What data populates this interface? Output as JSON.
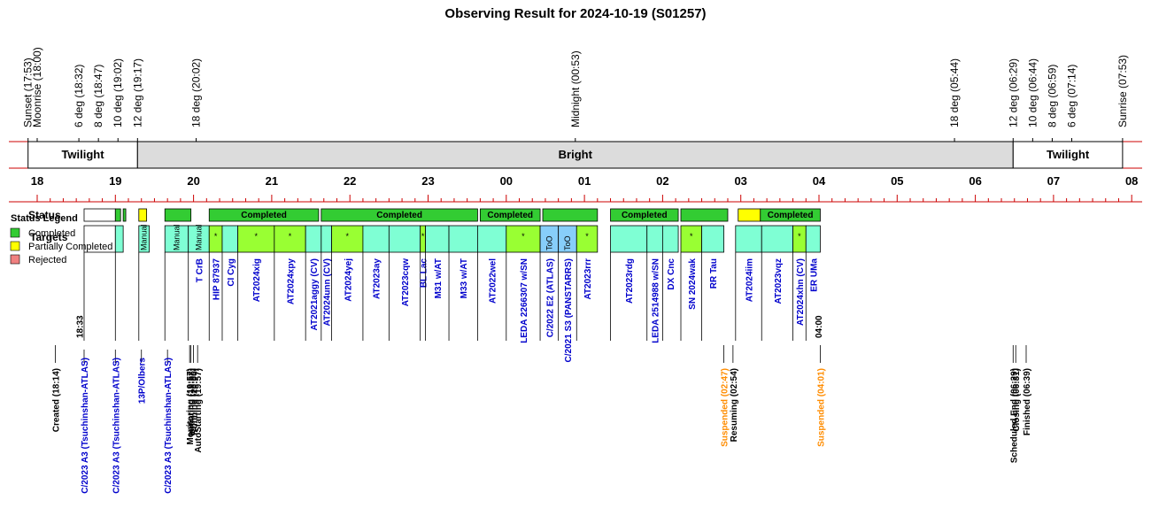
{
  "chart_data": {
    "type": "timeline",
    "title": "Observing Result for 2024-10-19 (S01257)",
    "hour_ticks": [
      "18",
      "19",
      "20",
      "21",
      "22",
      "23",
      "00",
      "01",
      "02",
      "03",
      "04",
      "05",
      "06",
      "07",
      "08"
    ],
    "events": [
      {
        "label": "Sunset (17:53)",
        "time": "17:53",
        "color": "#000000"
      },
      {
        "label": "Moonrise (18:00)",
        "time": "18:00",
        "color": "#0000cc"
      },
      {
        "label": "6 deg (18:32)",
        "time": "18:32",
        "color": "#000000"
      },
      {
        "label": "8 deg (18:47)",
        "time": "18:47",
        "color": "#000000"
      },
      {
        "label": "10 deg (19:02)",
        "time": "19:02",
        "color": "#000000"
      },
      {
        "label": "12 deg (19:17)",
        "time": "19:17",
        "color": "#000000"
      },
      {
        "label": "18 deg (20:02)",
        "time": "20:02",
        "color": "#000000"
      },
      {
        "label": "Midnight (00:53)",
        "time": "00:53",
        "color": "#000000"
      },
      {
        "label": "18 deg (05:44)",
        "time": "05:44",
        "color": "#000000"
      },
      {
        "label": "12 deg (06:29)",
        "time": "06:29",
        "color": "#000000"
      },
      {
        "label": "10 deg (06:44)",
        "time": "06:44",
        "color": "#000000"
      },
      {
        "label": "8 deg (06:59)",
        "time": "06:59",
        "color": "#000000"
      },
      {
        "label": "6 deg (07:14)",
        "time": "07:14",
        "color": "#000000"
      },
      {
        "label": "Sunrise (07:53)",
        "time": "07:53",
        "color": "#000000"
      }
    ],
    "phases": [
      {
        "label": "Twilight",
        "start": "17:53",
        "end": "19:17",
        "fill": "#ffffff"
      },
      {
        "label": "Bright",
        "start": "19:17",
        "end": "06:29",
        "fill": "#dcdcdc"
      },
      {
        "label": "Twilight",
        "start": "06:29",
        "end": "07:53",
        "fill": "#ffffff"
      }
    ],
    "status_label": "Status",
    "targets_label": "Targets",
    "legend": {
      "title": "Status Legend",
      "items": [
        {
          "label": "Completed",
          "color": "#33cc33"
        },
        {
          "label": "Partially Completed",
          "color": "#ffff00"
        },
        {
          "label": "Rejected",
          "color": "#f08080"
        }
      ]
    },
    "status": [
      {
        "start": "18:36",
        "end": "19:00",
        "status": "none"
      },
      {
        "start": "19:00",
        "end": "19:04",
        "status": "completed"
      },
      {
        "start": "19:06",
        "end": "19:08",
        "status": "completed"
      },
      {
        "start": "19:18",
        "end": "19:24",
        "status": "partial"
      },
      {
        "start": "19:38",
        "end": "19:58",
        "status": "completed"
      },
      {
        "start": "20:12",
        "end": "21:36",
        "status": "completed",
        "label": "Completed"
      },
      {
        "start": "21:38",
        "end": "23:38",
        "status": "completed",
        "label": "Completed"
      },
      {
        "start": "23:40",
        "end": "00:26",
        "status": "completed",
        "label": "Completed"
      },
      {
        "start": "00:28",
        "end": "01:10",
        "status": "completed"
      },
      {
        "start": "01:20",
        "end": "02:12",
        "status": "completed",
        "label": "Completed"
      },
      {
        "start": "02:14",
        "end": "02:50",
        "status": "completed"
      },
      {
        "start": "02:58",
        "end": "03:15",
        "status": "partial"
      },
      {
        "start": "03:15",
        "end": "04:01",
        "status": "completed",
        "label": "Completed"
      }
    ],
    "targets": [
      {
        "name": "C/2023 A3 (Tsuchinshan-ATLAS)",
        "start": "18:36",
        "end": "19:00",
        "fill": "#ffffff",
        "row": "bottom"
      },
      {
        "name": "C/2023 A3 (Tsuchinshan-ATLAS)",
        "start": "19:00",
        "end": "19:06",
        "fill": "#7fffd4",
        "row": "bottom"
      },
      {
        "name": "13P/Olbers",
        "start": "19:18",
        "end": "19:26",
        "fill": "#7fffd4",
        "tag": "Manual",
        "row": "bottom"
      },
      {
        "name": "C/2023 A3 (Tsuchinshan-ATLAS)",
        "start": "19:38",
        "end": "19:56",
        "fill": "#7fffd4",
        "tag": "Manual",
        "row": "bottom"
      },
      {
        "name": "T CrB",
        "start": "19:56",
        "end": "20:12",
        "fill": "#7fffd4",
        "tag": "Manual",
        "row": "mid"
      },
      {
        "name": "HIP 87937",
        "start": "20:12",
        "end": "20:22",
        "fill": "#99ff33",
        "mark": "*",
        "row": "mid"
      },
      {
        "name": "CI Cyg",
        "start": "20:22",
        "end": "20:34",
        "fill": "#7fffd4",
        "row": "mid"
      },
      {
        "name": "AT2024xig",
        "start": "20:34",
        "end": "21:02",
        "fill": "#99ff33",
        "mark": "*",
        "row": "mid"
      },
      {
        "name": "AT2024xpy",
        "start": "21:02",
        "end": "21:26",
        "fill": "#99ff33",
        "mark": "*",
        "row": "mid"
      },
      {
        "name": "AT2021aggy (CV)",
        "start": "21:26",
        "end": "21:38",
        "fill": "#7fffd4",
        "row": "mid"
      },
      {
        "name": "AT2024unn (CV)",
        "start": "21:38",
        "end": "21:46",
        "fill": "#7fffd4",
        "row": "mid"
      },
      {
        "name": "AT2024yej",
        "start": "21:46",
        "end": "22:10",
        "fill": "#99ff33",
        "mark": "*",
        "row": "mid"
      },
      {
        "name": "AT2023ay",
        "start": "22:10",
        "end": "22:30",
        "fill": "#7fffd4",
        "row": "mid"
      },
      {
        "name": "AT2023cqw",
        "start": "22:30",
        "end": "22:54",
        "fill": "#7fffd4",
        "row": "mid"
      },
      {
        "name": "BL Lac",
        "start": "22:54",
        "end": "22:58",
        "fill": "#99ff33",
        "mark": "*",
        "row": "mid"
      },
      {
        "name": "M31 w/AT",
        "start": "22:58",
        "end": "23:16",
        "fill": "#7fffd4",
        "row": "mid"
      },
      {
        "name": "M33 w/AT",
        "start": "23:16",
        "end": "23:38",
        "fill": "#7fffd4",
        "row": "mid"
      },
      {
        "name": "AT2022wel",
        "start": "23:38",
        "end": "00:00",
        "fill": "#7fffd4",
        "row": "mid"
      },
      {
        "name": "LEDA 2266307 w/SN",
        "start": "00:00",
        "end": "00:26",
        "fill": "#99ff33",
        "mark": "*",
        "row": "mid"
      },
      {
        "name": "C/2022 E2 (ATLAS)",
        "start": "00:26",
        "end": "00:40",
        "fill": "#87cefa",
        "tag": "ToO",
        "row": "mid"
      },
      {
        "name": "C/2021 S3 (PANSTARRS)",
        "start": "00:40",
        "end": "00:54",
        "fill": "#87cefa",
        "tag": "ToO",
        "row": "mid"
      },
      {
        "name": "AT2023rrr",
        "start": "00:54",
        "end": "01:10",
        "fill": "#99ff33",
        "mark": "*",
        "row": "mid"
      },
      {
        "name": "AT2023rdg",
        "start": "01:20",
        "end": "01:48",
        "fill": "#7fffd4",
        "row": "mid"
      },
      {
        "name": "LEDA 2514988 w/SN",
        "start": "01:48",
        "end": "02:00",
        "fill": "#7fffd4",
        "row": "mid"
      },
      {
        "name": "DX Cnc",
        "start": "02:00",
        "end": "02:12",
        "fill": "#7fffd4",
        "row": "mid"
      },
      {
        "name": "SN 2024wak",
        "start": "02:14",
        "end": "02:30",
        "fill": "#99ff33",
        "mark": "*",
        "row": "mid"
      },
      {
        "name": "RR Tau",
        "start": "02:30",
        "end": "02:47",
        "fill": "#7fffd4",
        "row": "mid"
      },
      {
        "name": "AT2024iim",
        "start": "02:56",
        "end": "03:16",
        "fill": "#7fffd4",
        "row": "mid"
      },
      {
        "name": "AT2023vqz",
        "start": "03:16",
        "end": "03:40",
        "fill": "#7fffd4",
        "row": "mid"
      },
      {
        "name": "AT2024xhn (CV)",
        "start": "03:40",
        "end": "03:50",
        "fill": "#99ff33",
        "mark": "*",
        "row": "mid"
      },
      {
        "name": "ER UMa",
        "start": "03:50",
        "end": "04:01",
        "fill": "#7fffd4",
        "row": "mid"
      }
    ],
    "time_marks": [
      {
        "label": "18:33",
        "time": "18:33"
      },
      {
        "label": "04:00",
        "time": "04:00"
      }
    ],
    "lower_events": [
      {
        "label": "Created (18:14)",
        "time": "18:14",
        "color": "#000000"
      },
      {
        "label": "Monitoring (19:57)",
        "time": "19:57",
        "color": "#000000"
      },
      {
        "label": "AutoStarting (19:57)",
        "time": "19:57",
        "color": "#000000"
      },
      {
        "label": "Initiating (19:58)",
        "time": "19:58",
        "color": "#000000"
      },
      {
        "label": "Running (20:00)",
        "time": "20:00",
        "color": "#000000"
      },
      {
        "label": "Suspended (02:47)",
        "time": "02:47",
        "color": "#ff8c00"
      },
      {
        "label": "Resuming (02:54)",
        "time": "02:54",
        "color": "#000000"
      },
      {
        "label": "Suspended (04:01)",
        "time": "04:01",
        "color": "#ff8c00"
      },
      {
        "label": "Scheduled End (06:29)",
        "time": "06:29",
        "color": "#000000"
      },
      {
        "label": "Closing (06:31)",
        "time": "06:31",
        "color": "#000000"
      },
      {
        "label": "Finished (06:39)",
        "time": "06:39",
        "color": "#000000"
      }
    ],
    "bottom_targets": [
      {
        "label": "C/2023 A3 (Tsuchinshan-ATLAS)",
        "time": "18:36"
      },
      {
        "label": "C/2023 A3 (Tsuchinshan-ATLAS)",
        "time": "19:00"
      },
      {
        "label": "13P/Olbers",
        "time": "19:20"
      },
      {
        "label": "C/2023 A3 (Tsuchinshan-ATLAS)",
        "time": "19:40"
      }
    ]
  }
}
